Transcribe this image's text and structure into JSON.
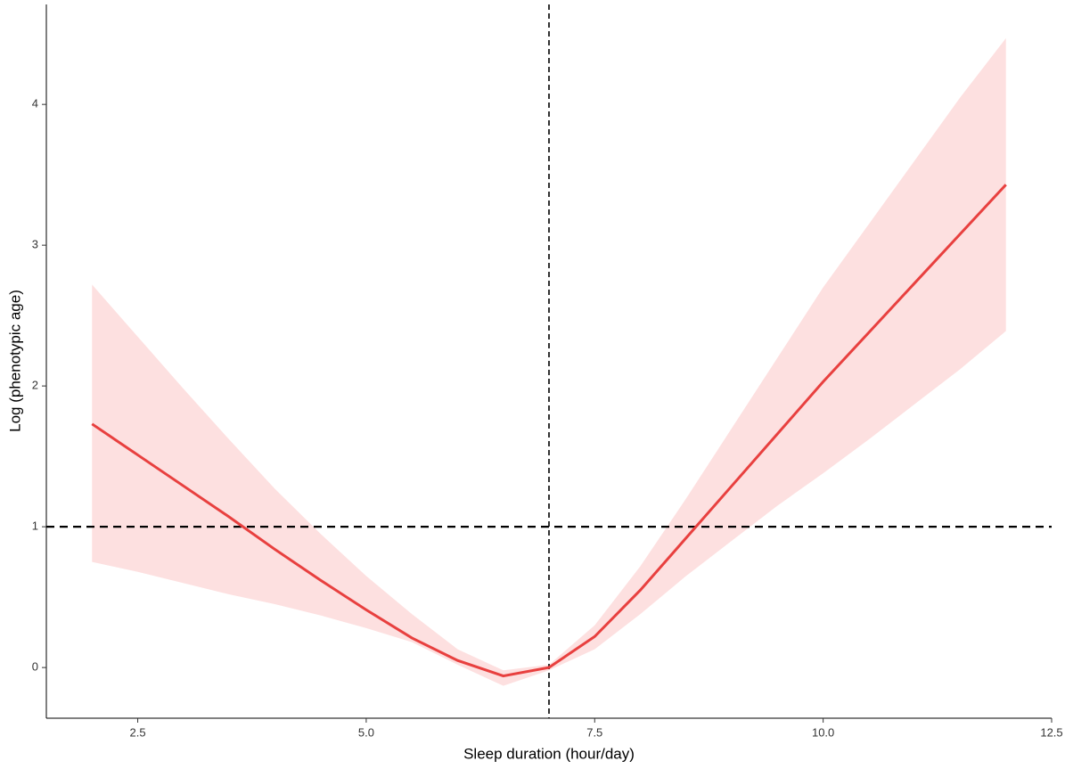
{
  "chart_data": {
    "type": "line",
    "xlabel": "Sleep duration (hour/day)",
    "ylabel": "Log (phenotypic age)",
    "x": [
      2,
      2.5,
      3,
      3.5,
      4,
      4.5,
      5,
      5.5,
      6,
      6.5,
      7,
      7.5,
      8,
      8.5,
      9,
      9.5,
      10,
      10.5,
      11,
      11.5,
      12
    ],
    "series": [
      {
        "color": "#e8403f",
        "values": [
          1.73,
          1.51,
          1.29,
          1.07,
          0.84,
          0.62,
          0.41,
          0.21,
          0.05,
          -0.06,
          0.0,
          0.22,
          0.55,
          0.92,
          1.29,
          1.66,
          2.03,
          2.38,
          2.73,
          3.08,
          3.43
        ]
      }
    ],
    "band": {
      "color": "#fde0e0",
      "lower": [
        0.75,
        0.68,
        0.6,
        0.52,
        0.45,
        0.37,
        0.28,
        0.18,
        0.02,
        -0.13,
        -0.02,
        0.13,
        0.38,
        0.65,
        0.9,
        1.15,
        1.38,
        1.62,
        1.87,
        2.12,
        2.39
      ],
      "upper": [
        2.72,
        2.35,
        1.98,
        1.62,
        1.27,
        0.95,
        0.65,
        0.38,
        0.13,
        -0.02,
        0.02,
        0.3,
        0.72,
        1.2,
        1.7,
        2.2,
        2.7,
        3.15,
        3.6,
        4.05,
        4.47
      ]
    },
    "hline": 1,
    "vline": 7,
    "xlim": [
      1.5,
      12.5
    ],
    "xticks": [
      {
        "value": 2.5,
        "label": "2.5"
      },
      {
        "value": 5,
        "label": "5.0"
      },
      {
        "value": 7.5,
        "label": "7.5"
      },
      {
        "value": 10,
        "label": "10.0"
      },
      {
        "value": 12.5,
        "label": "12.5"
      }
    ],
    "ylim": [
      -0.36,
      4.71
    ],
    "yticks": [
      0,
      1,
      2,
      3,
      4
    ],
    "grid": false
  }
}
